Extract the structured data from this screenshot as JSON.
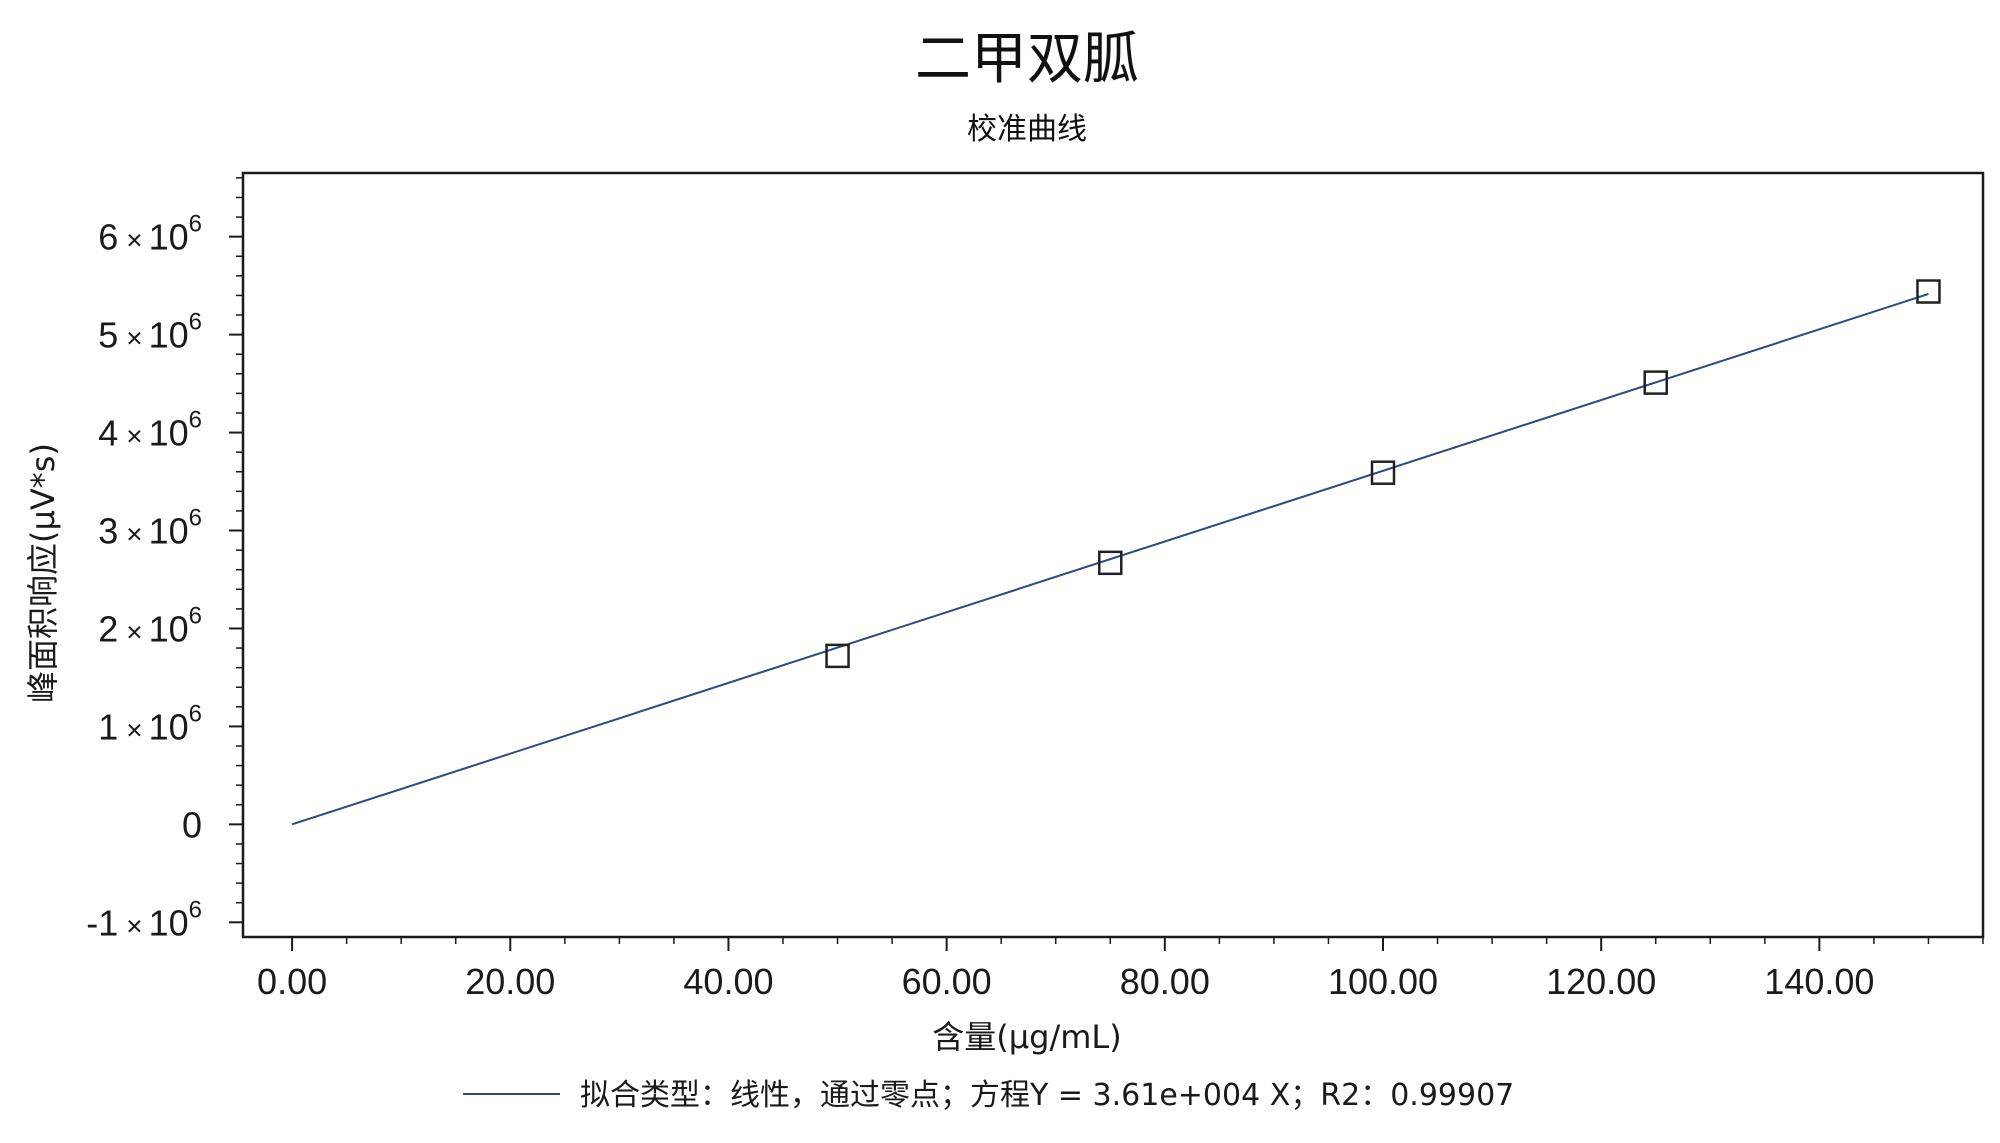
{
  "chart_data": {
    "type": "scatter",
    "title": "二甲双胍",
    "subtitle": "校准曲线",
    "xlabel": "含量(μg/mL)",
    "ylabel": "峰面积响应(μV*s)",
    "xlim": [
      -4.5,
      155
    ],
    "ylim": [
      -1150000,
      6650000
    ],
    "x_ticks": [
      {
        "value": 0,
        "label": "0.00"
      },
      {
        "value": 20,
        "label": "20.00"
      },
      {
        "value": 40,
        "label": "40.00"
      },
      {
        "value": 60,
        "label": "60.00"
      },
      {
        "value": 80,
        "label": "80.00"
      },
      {
        "value": 100,
        "label": "100.00"
      },
      {
        "value": 120,
        "label": "120.00"
      },
      {
        "value": 140,
        "label": "140.00"
      }
    ],
    "x_minor_step": 5,
    "y_ticks": [
      {
        "value": -1000000,
        "mantissa": "-1",
        "times": "×",
        "base": "10",
        "exp": "6"
      },
      {
        "value": 0,
        "mantissa": "0",
        "times": "",
        "base": "",
        "exp": ""
      },
      {
        "value": 1000000,
        "mantissa": "1",
        "times": "×",
        "base": "10",
        "exp": "6"
      },
      {
        "value": 2000000,
        "mantissa": "2",
        "times": "×",
        "base": "10",
        "exp": "6"
      },
      {
        "value": 3000000,
        "mantissa": "3",
        "times": "×",
        "base": "10",
        "exp": "6"
      },
      {
        "value": 4000000,
        "mantissa": "4",
        "times": "×",
        "base": "10",
        "exp": "6"
      },
      {
        "value": 5000000,
        "mantissa": "5",
        "times": "×",
        "base": "10",
        "exp": "6"
      },
      {
        "value": 6000000,
        "mantissa": "6",
        "times": "×",
        "base": "10",
        "exp": "6"
      }
    ],
    "y_minor_step": 200000,
    "points": [
      {
        "x": 50,
        "y": 1720000
      },
      {
        "x": 75,
        "y": 2670000
      },
      {
        "x": 100,
        "y": 3590000
      },
      {
        "x": 125,
        "y": 4510000
      },
      {
        "x": 150,
        "y": 5440000
      }
    ],
    "fit_line": {
      "x": [
        0,
        150
      ],
      "y": [
        0,
        5415000
      ],
      "color": "#2b4a86"
    },
    "legend": {
      "text": "拟合类型：线性，通过零点；方程Y = 3.61e+004 X；R2：0.99907",
      "position": "bottom"
    },
    "grid": false,
    "marker_color": "#222222"
  }
}
